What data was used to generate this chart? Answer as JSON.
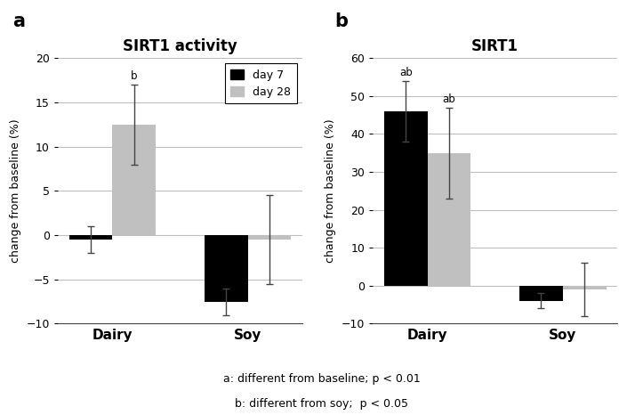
{
  "panel_a": {
    "title": "SIRT1 activity",
    "ylabel": "change from baseline (%)",
    "categories": [
      "Dairy",
      "Soy"
    ],
    "day7_values": [
      -0.5,
      -7.5
    ],
    "day28_values": [
      12.5,
      -0.5
    ],
    "day7_errors": [
      1.5,
      1.5
    ],
    "day28_errors": [
      4.5,
      5.0
    ],
    "day7_annotations": [
      "",
      ""
    ],
    "day28_annotations": [
      "b",
      ""
    ],
    "ylim": [
      -10,
      20
    ],
    "yticks": [
      -10,
      -5,
      0,
      5,
      10,
      15,
      20
    ]
  },
  "panel_b": {
    "title": "SIRT1",
    "ylabel": "change from baseline (%)",
    "categories": [
      "Dairy",
      "Soy"
    ],
    "day7_values": [
      46,
      -4
    ],
    "day28_values": [
      35,
      -1
    ],
    "day7_errors": [
      8,
      2
    ],
    "day28_errors": [
      12,
      7
    ],
    "day7_annotations": [
      "ab",
      ""
    ],
    "day28_annotations": [
      "ab",
      ""
    ],
    "ylim": [
      -10,
      60
    ],
    "yticks": [
      -10,
      0,
      10,
      20,
      30,
      40,
      50,
      60
    ]
  },
  "legend_labels": [
    "day 7",
    "day 28"
  ],
  "bar_colors": [
    "#000000",
    "#c0c0c0"
  ],
  "bar_width": 0.32,
  "footnote_line1": "a: different from baseline; p < 0.01",
  "footnote_line2": "b: different from soy;  p < 0.05",
  "panel_labels": [
    "a",
    "b"
  ],
  "background_color": "#ffffff",
  "grid_color": "#bebebe"
}
